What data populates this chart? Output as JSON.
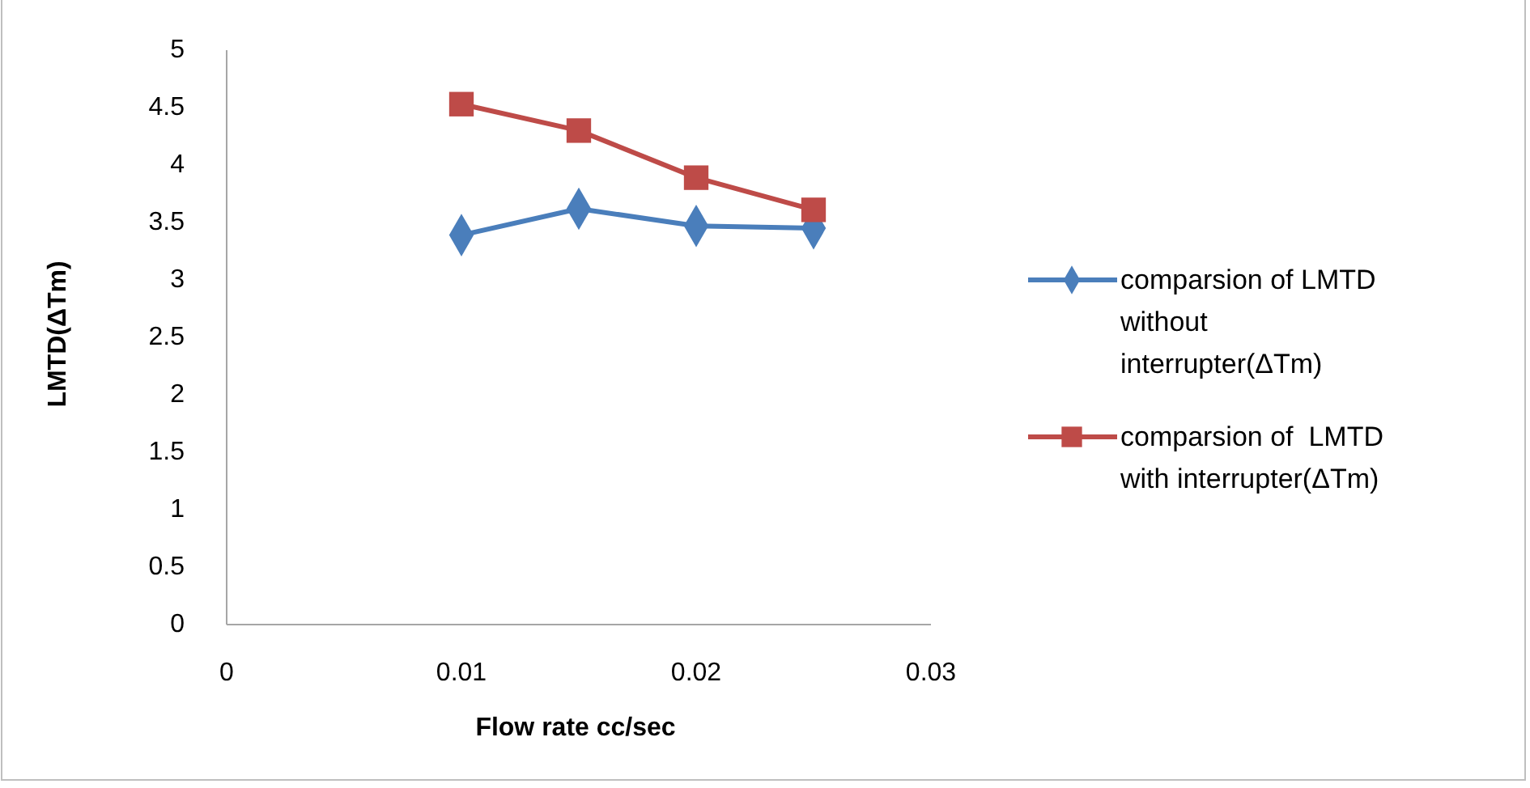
{
  "chart_data": {
    "type": "line",
    "xlabel": "Flow rate cc/sec",
    "ylabel": "LMTD(ΔTm)",
    "x": [
      0.01,
      0.015,
      0.02,
      0.025
    ],
    "series": [
      {
        "name": "comparsion of LMTD without interrupter(ΔTm)",
        "color": "#4a7ebb",
        "marker": "diamond",
        "values": [
          3.39,
          3.62,
          3.47,
          3.45
        ]
      },
      {
        "name": "comparsion of  LMTD with interrupter(ΔTm)",
        "color": "#be4b48",
        "marker": "square",
        "values": [
          4.53,
          4.3,
          3.89,
          3.61
        ]
      }
    ],
    "xlim": [
      0,
      0.03
    ],
    "xticks": [
      0,
      0.01,
      0.02,
      0.03
    ],
    "ylim": [
      0,
      5
    ],
    "yticks": [
      0,
      0.5,
      1,
      1.5,
      2,
      2.5,
      3,
      3.5,
      4,
      4.5,
      5
    ],
    "grid": false,
    "legend": "right",
    "line_style": "solid"
  }
}
